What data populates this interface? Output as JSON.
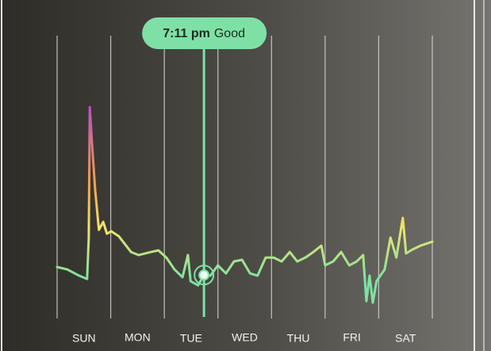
{
  "chart_data": {
    "type": "line",
    "categories": [
      "SUN",
      "MON",
      "TUE",
      "WED",
      "THU",
      "FRI",
      "SAT"
    ],
    "xlim": [
      0,
      7
    ],
    "xticks": [
      0,
      1,
      2,
      3,
      4,
      5,
      6,
      7
    ],
    "ylim": [
      0,
      100
    ],
    "grid": true,
    "colors": [
      "#7de3a0",
      "#f0e46c",
      "#f2a24a",
      "#b94fc0"
    ],
    "series": [
      {
        "x": [
          0.0,
          0.19,
          0.41,
          0.56,
          0.59,
          0.61,
          0.65,
          0.71,
          0.78,
          0.86,
          0.93,
          1.01,
          1.15,
          1.38,
          1.52,
          1.75,
          1.89,
          2.04,
          2.19,
          2.34,
          2.44,
          2.49,
          2.63,
          2.74,
          2.86,
          3.0,
          3.15,
          3.3,
          3.45,
          3.6,
          3.74,
          3.89,
          4.04,
          4.19,
          4.34,
          4.48,
          4.63,
          4.78,
          4.93,
          5.0,
          5.15,
          5.3,
          5.45,
          5.59,
          5.71,
          5.77,
          5.83,
          5.89,
          5.96,
          6.11,
          6.22,
          6.33,
          6.45,
          6.51,
          6.63,
          6.78,
          7.0
        ],
        "values": [
          18,
          17.1,
          14.9,
          13.7,
          28.6,
          75.7,
          62.9,
          45.7,
          31.4,
          34.3,
          30,
          30.9,
          29.1,
          23.4,
          22.3,
          23.4,
          24,
          21.4,
          17.1,
          14.3,
          22.3,
          12.9,
          11.4,
          15.1,
          14.9,
          18.6,
          15.7,
          20,
          20.6,
          15.7,
          14.9,
          21.4,
          21.4,
          20,
          23.4,
          20,
          21.4,
          23.4,
          25.7,
          18.6,
          20,
          23.4,
          18.6,
          20,
          22.3,
          5.7,
          14.9,
          5.1,
          12.9,
          17.1,
          28.6,
          21.4,
          35.7,
          22.9,
          24.3,
          25.7,
          27.1
        ]
      }
    ],
    "cursor": {
      "x": 2.74,
      "y": 15.1,
      "time": "7:11 pm",
      "status": "Good",
      "color": "#7fe0a6"
    }
  }
}
